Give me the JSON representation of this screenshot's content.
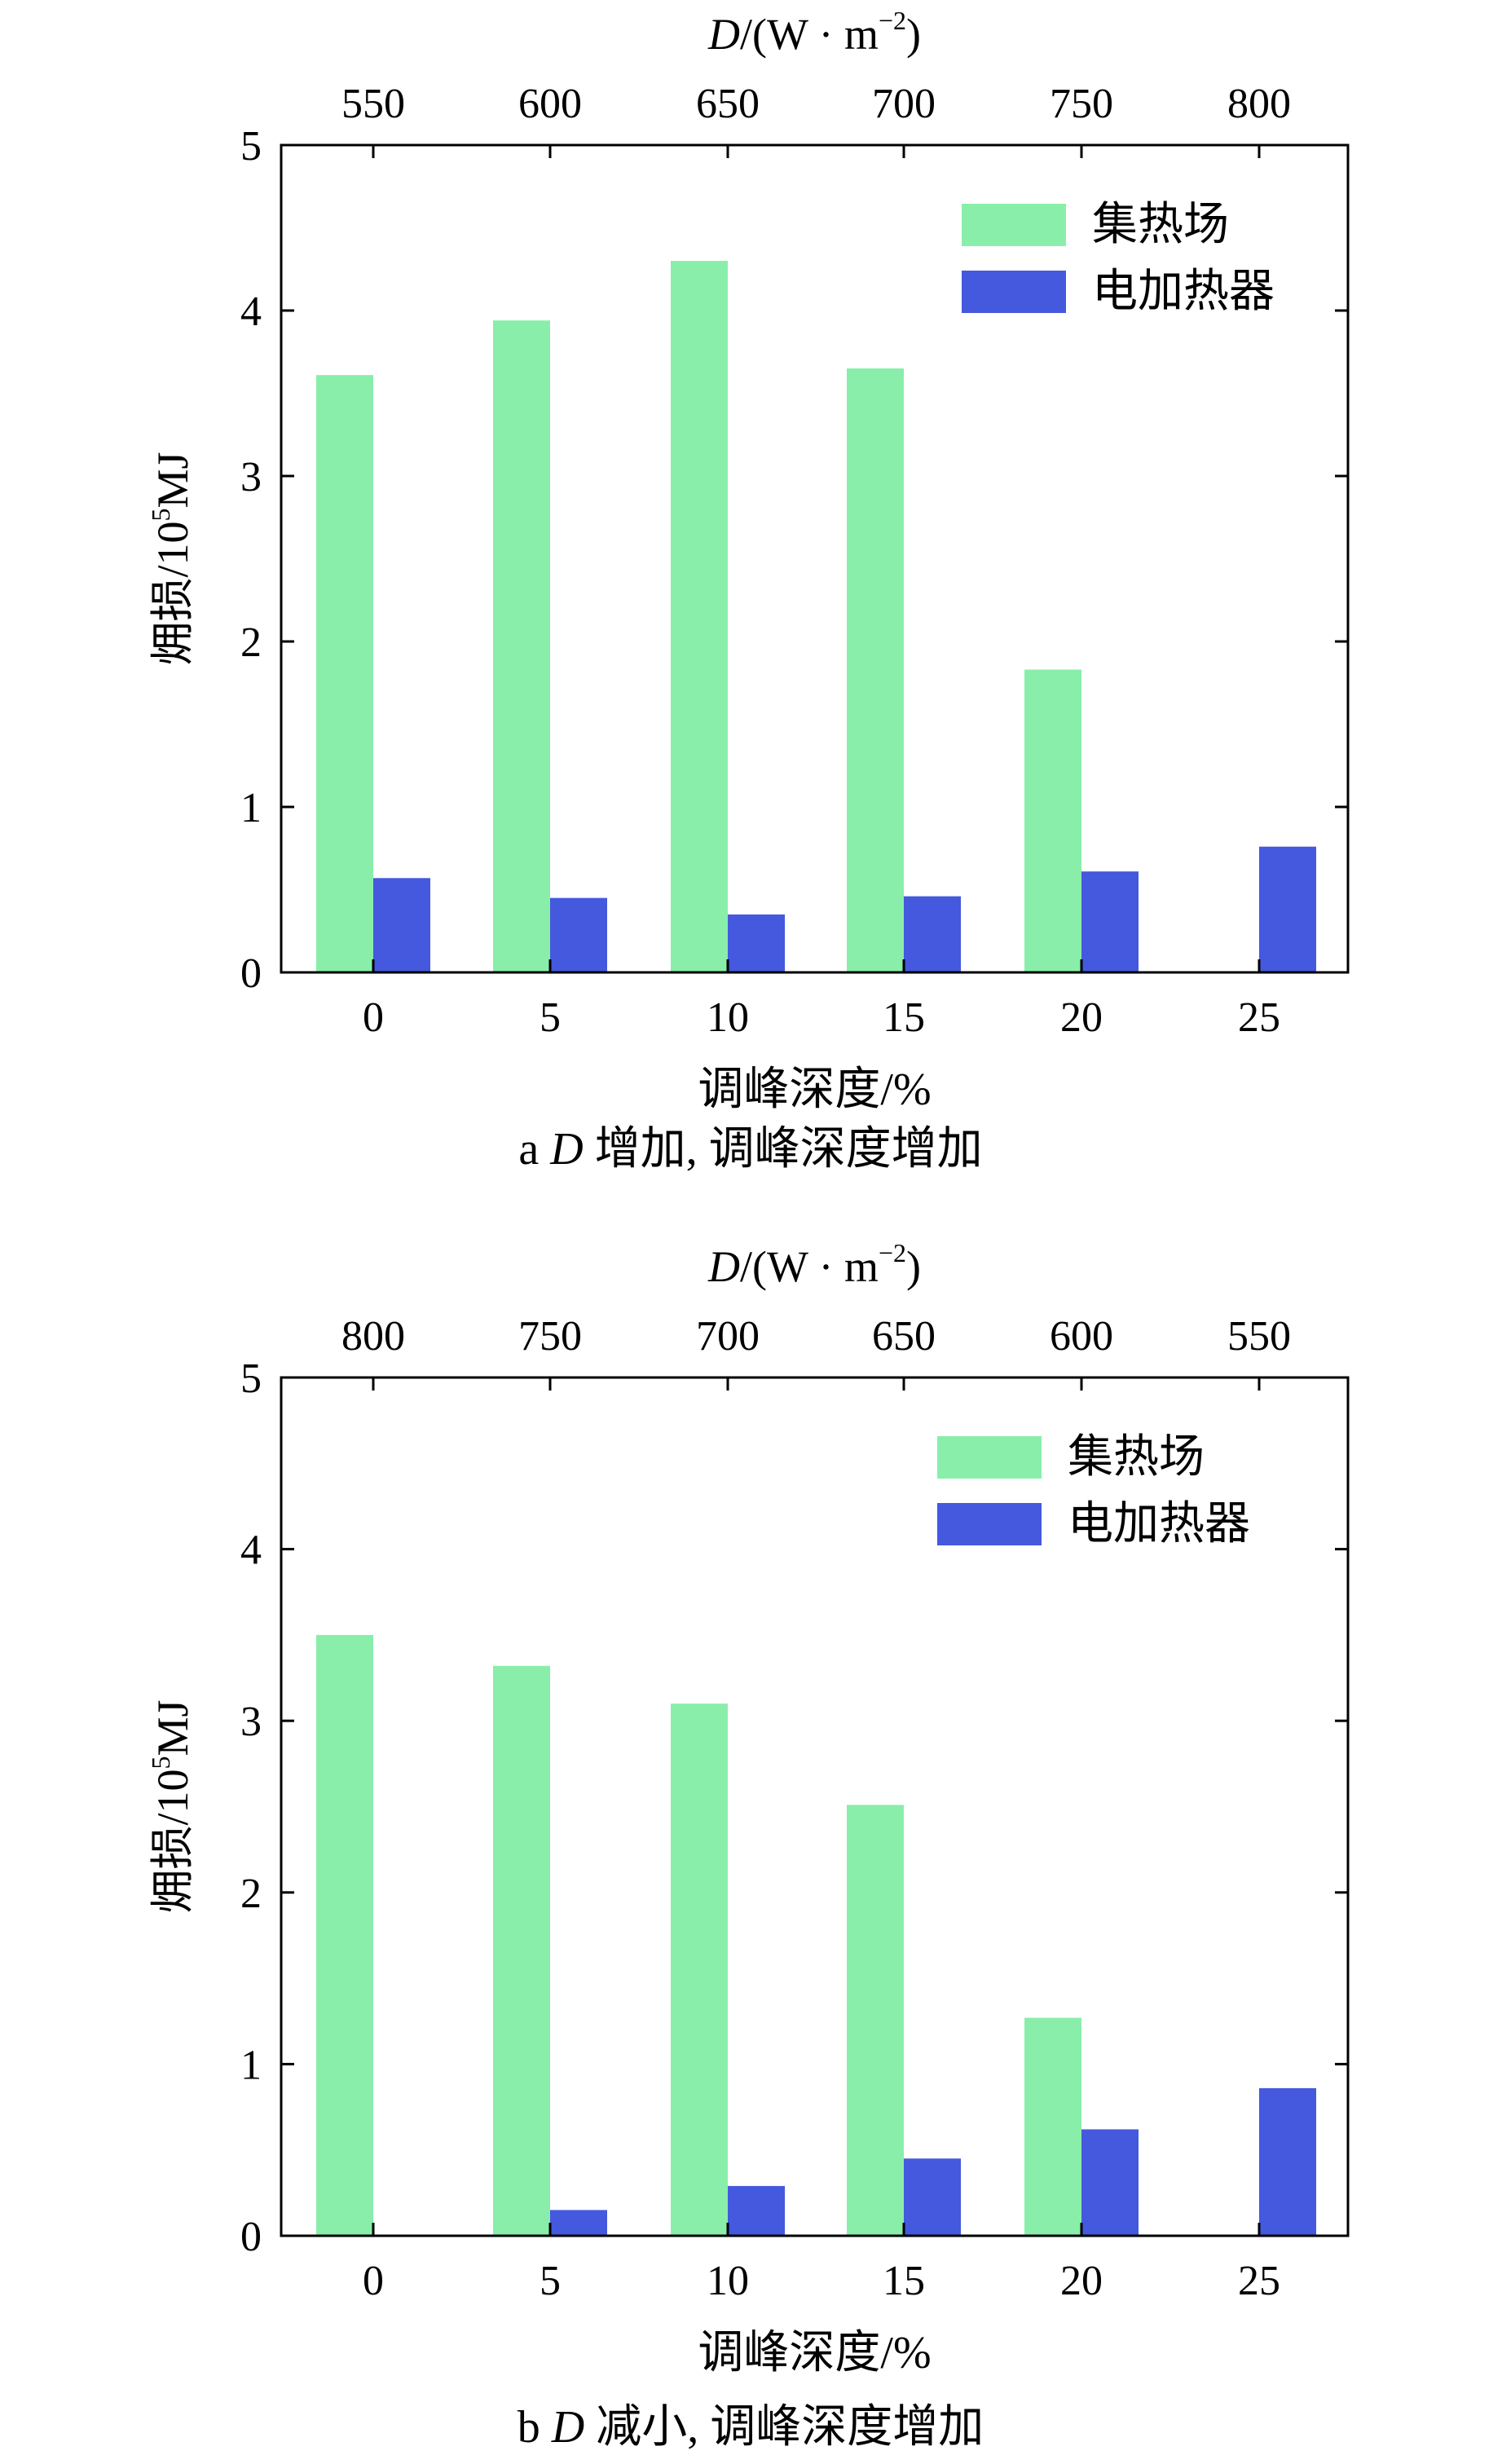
{
  "chart_data": [
    {
      "type": "bar",
      "caption": {
        "letter": "a",
        "var": "D",
        "text": "增加, 调峰深度增加"
      },
      "top_axis": {
        "var": "D",
        "unit": "/(W · m",
        "exp": "−2",
        "close": ")"
      },
      "top_ticks": [
        "550",
        "600",
        "650",
        "700",
        "750",
        "800"
      ],
      "categories": [
        "0",
        "5",
        "10",
        "15",
        "20",
        "25"
      ],
      "xlabel": "调峰深度/%",
      "ylabel": {
        "pre": "㶲损/10",
        "exp": "5",
        "post": "MJ"
      },
      "ylim": [
        0,
        5
      ],
      "yticks": [
        "0",
        "1",
        "2",
        "3",
        "4",
        "5"
      ],
      "legend_position": "top-right",
      "series": [
        {
          "name": "集热场",
          "color": "#88eeaa",
          "values": [
            3.61,
            3.94,
            4.3,
            3.65,
            1.83,
            0
          ]
        },
        {
          "name": "电加热器",
          "color": "#4459dd",
          "values": [
            0.57,
            0.45,
            0.35,
            0.46,
            0.61,
            0.76
          ]
        }
      ]
    },
    {
      "type": "bar",
      "caption": {
        "letter": "b",
        "var": "D",
        "text": "减小, 调峰深度增加"
      },
      "top_axis": {
        "var": "D",
        "unit": "/(W · m",
        "exp": "−2",
        "close": ")"
      },
      "top_ticks": [
        "800",
        "750",
        "700",
        "650",
        "600",
        "550"
      ],
      "categories": [
        "0",
        "5",
        "10",
        "15",
        "20",
        "25"
      ],
      "xlabel": "调峰深度/%",
      "ylabel": {
        "pre": "㶲损/10",
        "exp": "5",
        "post": "MJ"
      },
      "ylim": [
        0,
        5
      ],
      "yticks": [
        "0",
        "1",
        "2",
        "3",
        "4",
        "5"
      ],
      "legend_position": "top-right",
      "series": [
        {
          "name": "集热场",
          "color": "#88eeaa",
          "values": [
            3.5,
            3.32,
            3.1,
            2.51,
            1.27,
            0
          ]
        },
        {
          "name": "电加热器",
          "color": "#4459dd",
          "values": [
            0,
            0.15,
            0.29,
            0.45,
            0.62,
            0.86
          ]
        }
      ]
    }
  ]
}
